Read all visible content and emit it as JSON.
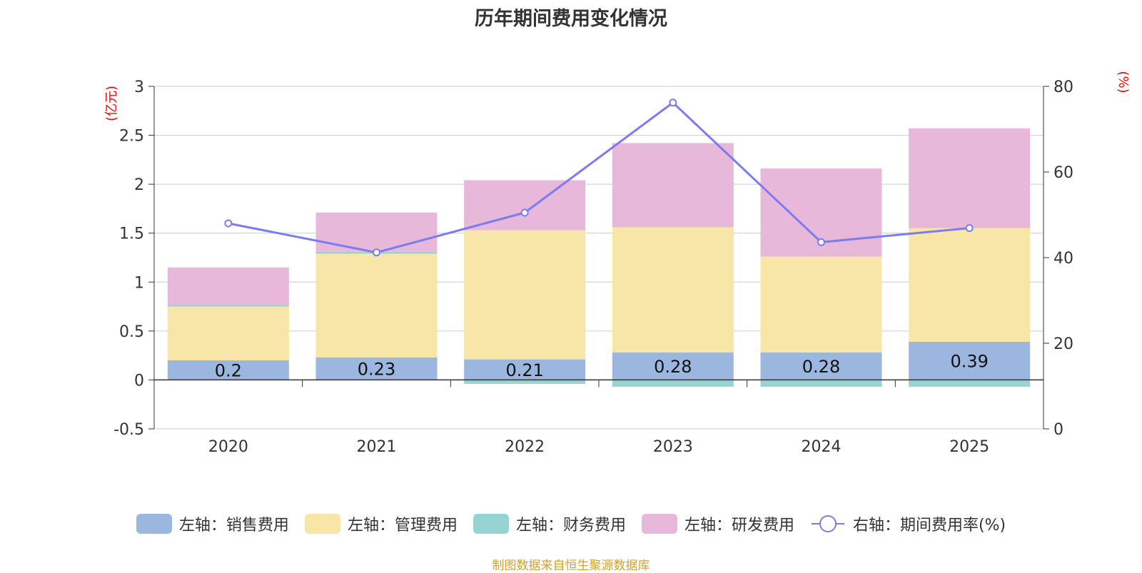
{
  "chart_data": {
    "type": "bar",
    "title": "历年期间费用变化情况",
    "categories": [
      "2020",
      "2021",
      "2022",
      "2023",
      "2024",
      "2025"
    ],
    "series": [
      {
        "name": "左轴：销售费用",
        "axis": "left",
        "kind": "bar",
        "color": "#9bb7e0",
        "values": [
          0.2,
          0.23,
          0.21,
          0.28,
          0.28,
          0.39
        ],
        "labels": [
          "0.2",
          "0.23",
          "0.21",
          "0.28",
          "0.28",
          "0.39"
        ]
      },
      {
        "name": "左轴：管理费用",
        "axis": "left",
        "kind": "bar",
        "color": "#f7e6a7",
        "values": [
          0.55,
          1.06,
          1.32,
          1.28,
          0.98,
          1.16
        ]
      },
      {
        "name": "左轴：财务费用",
        "axis": "left",
        "kind": "bar",
        "color": "#96d4d4",
        "values": [
          0.02,
          0.02,
          -0.04,
          -0.07,
          -0.07,
          -0.07
        ]
      },
      {
        "name": "左轴：研发费用",
        "axis": "left",
        "kind": "bar",
        "color": "#e8b8da",
        "values": [
          0.38,
          0.4,
          0.51,
          0.86,
          0.9,
          1.02
        ]
      },
      {
        "name": "右轴：期间费用率(%)",
        "axis": "right",
        "kind": "line",
        "color": "#7b7cf2",
        "values": [
          48,
          41.2,
          50.5,
          76.2,
          43.6,
          46.9
        ]
      }
    ],
    "left_axis": {
      "label": "(亿元)",
      "ylim": [
        -0.5,
        3
      ],
      "ticks": [
        3,
        2.5,
        2,
        1.5,
        1,
        0.5,
        0,
        -0.5
      ],
      "tick_labels": [
        "3",
        "2.5",
        "2",
        "1.5",
        "1",
        "0.5",
        "0",
        "-0.5"
      ]
    },
    "right_axis": {
      "label": "(%)",
      "ylim": [
        0,
        80
      ],
      "ticks": [
        80,
        60,
        40,
        20,
        0
      ],
      "tick_labels": [
        "80",
        "60",
        "40",
        "20",
        "0"
      ]
    },
    "grid": true,
    "legend_position": "bottom"
  },
  "footer": {
    "source": "制图数据来自恒生聚源数据库"
  }
}
